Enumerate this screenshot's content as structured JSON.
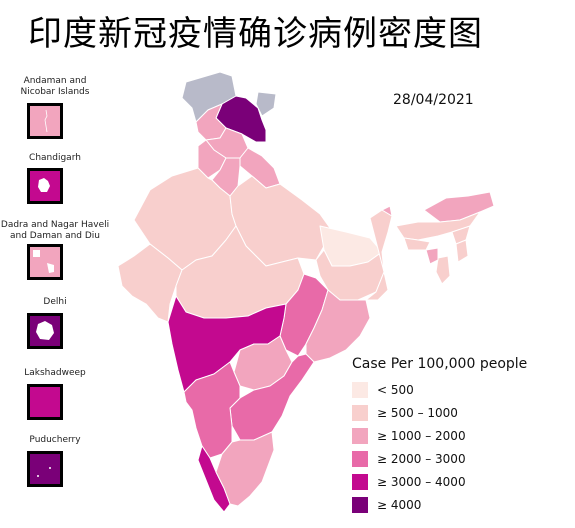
{
  "title": "印度新冠疫情确诊病例密度图",
  "date": "28/04/2021",
  "colors": {
    "no_data": "#b8bac9",
    "lt_500": "#fce9e4",
    "c500_1000": "#f8cfcd",
    "c1000_2000": "#f2a5be",
    "c2000_3000": "#e86aa8",
    "c3000_4000": "#c3098f",
    "ge_4000": "#7a0078"
  },
  "insets": [
    {
      "label": "Andaman and\nNicobar Islands",
      "class": "c1000_2000"
    },
    {
      "label": "Chandigarh",
      "class": "c3000_4000"
    },
    {
      "label": "Dadra and Nagar Haveli\nand Daman and Diu",
      "class": "c1000_2000"
    },
    {
      "label": "Delhi",
      "class": "ge_4000"
    },
    {
      "label": "Lakshadweep",
      "class": "c3000_4000"
    },
    {
      "label": "Puducherry",
      "class": "ge_4000"
    }
  ],
  "legend": {
    "title": "Case Per 100,000 people",
    "items": [
      {
        "label": "< 500",
        "class": "lt_500"
      },
      {
        "label": "≥ 500 – 1000",
        "class": "c500_1000"
      },
      {
        "label": "≥ 1000 – 2000",
        "class": "c1000_2000"
      },
      {
        "label": "≥ 2000 – 3000",
        "class": "c2000_3000"
      },
      {
        "label": "≥ 3000 – 4000",
        "class": "c3000_4000"
      },
      {
        "label": "≥ 4000",
        "class": "ge_4000"
      }
    ]
  },
  "regions": [
    {
      "id": "pok-region",
      "class": "no_data"
    },
    {
      "id": "aksai-chin",
      "class": "no_data"
    },
    {
      "id": "ladakh",
      "class": "ge_4000"
    },
    {
      "id": "jammu-kashmir",
      "class": "c1000_2000"
    },
    {
      "id": "himachal-pradesh",
      "class": "c1000_2000"
    },
    {
      "id": "punjab",
      "class": "c1000_2000"
    },
    {
      "id": "uttarakhand",
      "class": "c1000_2000"
    },
    {
      "id": "haryana",
      "class": "c1000_2000"
    },
    {
      "id": "rajasthan",
      "class": "c500_1000"
    },
    {
      "id": "uttar-pradesh",
      "class": "c500_1000"
    },
    {
      "id": "bihar",
      "class": "lt_500"
    },
    {
      "id": "gujarat",
      "class": "c500_1000"
    },
    {
      "id": "madhya-pradesh",
      "class": "c500_1000"
    },
    {
      "id": "jharkhand",
      "class": "c500_1000"
    },
    {
      "id": "west-bengal",
      "class": "c500_1000"
    },
    {
      "id": "chhattisgarh",
      "class": "c2000_3000"
    },
    {
      "id": "odisha",
      "class": "c1000_2000"
    },
    {
      "id": "maharashtra",
      "class": "c3000_4000"
    },
    {
      "id": "telangana",
      "class": "c1000_2000"
    },
    {
      "id": "andhra-pradesh",
      "class": "c2000_3000"
    },
    {
      "id": "goa",
      "class": "ge_4000"
    },
    {
      "id": "karnataka",
      "class": "c2000_3000"
    },
    {
      "id": "kerala",
      "class": "c3000_4000"
    },
    {
      "id": "tamil-nadu",
      "class": "c1000_2000"
    },
    {
      "id": "sikkim",
      "class": "c1000_2000"
    },
    {
      "id": "arunachal-pradesh",
      "class": "c1000_2000"
    },
    {
      "id": "assam",
      "class": "c500_1000"
    },
    {
      "id": "meghalaya",
      "class": "c500_1000"
    },
    {
      "id": "nagaland",
      "class": "c500_1000"
    },
    {
      "id": "manipur",
      "class": "c500_1000"
    },
    {
      "id": "mizoram",
      "class": "c500_1000"
    },
    {
      "id": "tripura",
      "class": "c1000_2000"
    }
  ]
}
